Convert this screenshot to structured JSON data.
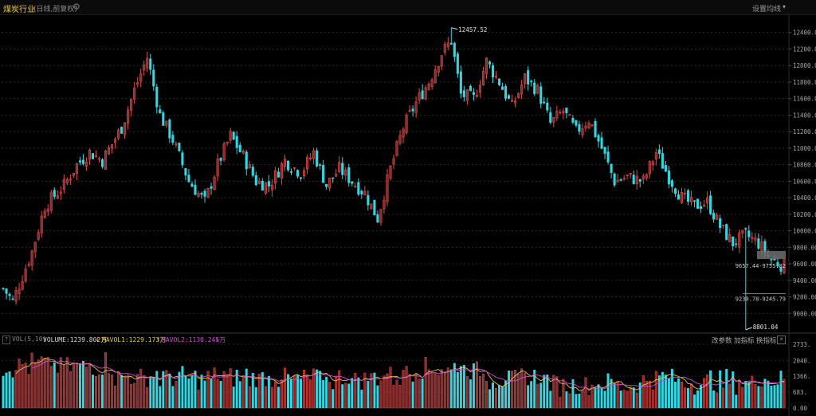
{
  "header": {
    "title": "煤炭行业",
    "subtitle": "(日线,前复权)",
    "ma_settings": "设置均线",
    "gear_icon": "gear-icon",
    "caret_icon": "caret-down-icon"
  },
  "colors": {
    "up": "#e34a4a",
    "down": "#36d6e1",
    "up_fill": "#8c2b2b",
    "ma1": "#e6c34a",
    "ma2": "#d34bd8",
    "grid": "#2a2a2a"
  },
  "volume_bar": {
    "help_label": "?",
    "name": "VOL(5,10)",
    "volume": "VOLUME:1239.802万",
    "volume_arrow": "↓",
    "ma1": "MAVOL1:1229.173万",
    "ma1_arrow": "↑",
    "ma2": "MAVOL2:1130.245万",
    "ma2_arrow": "↓",
    "param_button": "改参数",
    "add_button": "加指标",
    "switch_button": "换指标",
    "close_label": "✕"
  },
  "chart_data": [
    {
      "type": "candlestick",
      "title": "煤炭行业",
      "ylim": [
        8800,
        12600
      ],
      "y_ticks": [
        9000,
        9200,
        9400,
        9600,
        9800,
        10000,
        10200,
        10400,
        10600,
        10800,
        11000,
        11200,
        11400,
        11600,
        11800,
        12000,
        12200,
        12400
      ],
      "y_tick_labels": [
        "9000.00",
        "9200.00",
        "9400.00",
        "9600.00",
        "9800.00",
        "10000.00",
        "10200.00",
        "10400.00",
        "10600.00",
        "10800.00",
        "11000.00",
        "11200.00",
        "11400.00",
        "11600.00",
        "11800.00",
        "12000.00",
        "12200.00",
        "12400.00"
      ],
      "grid": true,
      "candle_count": 245,
      "close_anchors": [
        [
          0,
          9300
        ],
        [
          3,
          9150
        ],
        [
          9,
          9750
        ],
        [
          13,
          10300
        ],
        [
          19,
          10550
        ],
        [
          23,
          10800
        ],
        [
          27,
          10950
        ],
        [
          31,
          10850
        ],
        [
          37,
          11250
        ],
        [
          41,
          11700
        ],
        [
          45,
          12100
        ],
        [
          49,
          11400
        ],
        [
          53,
          11100
        ],
        [
          58,
          10600
        ],
        [
          63,
          10350
        ],
        [
          67,
          10800
        ],
        [
          71,
          11150
        ],
        [
          75,
          10900
        ],
        [
          79,
          10600
        ],
        [
          83,
          10550
        ],
        [
          88,
          10850
        ],
        [
          93,
          10700
        ],
        [
          97,
          10950
        ],
        [
          101,
          10550
        ],
        [
          105,
          10750
        ],
        [
          109,
          10600
        ],
        [
          113,
          10450
        ],
        [
          117,
          10150
        ],
        [
          121,
          10750
        ],
        [
          125,
          11250
        ],
        [
          129,
          11550
        ],
        [
          133,
          11800
        ],
        [
          137,
          12150
        ],
        [
          140,
          12300
        ],
        [
          143,
          11650
        ],
        [
          147,
          11600
        ],
        [
          151,
          12050
        ],
        [
          155,
          11800
        ],
        [
          159,
          11500
        ],
        [
          163,
          11850
        ],
        [
          167,
          11700
        ],
        [
          171,
          11300
        ],
        [
          175,
          11450
        ],
        [
          179,
          11200
        ],
        [
          183,
          11350
        ],
        [
          187,
          11000
        ],
        [
          191,
          10600
        ],
        [
          195,
          10650
        ],
        [
          200,
          10600
        ],
        [
          204,
          10950
        ],
        [
          208,
          10650
        ],
        [
          212,
          10400
        ],
        [
          216,
          10300
        ],
        [
          220,
          10350
        ],
        [
          224,
          10050
        ],
        [
          228,
          9850
        ],
        [
          232,
          9950
        ],
        [
          236,
          9850
        ],
        [
          240,
          9650
        ],
        [
          245,
          9550
        ]
      ],
      "peak_high": {
        "index": 140,
        "value": 12457.52,
        "label": "12457.52"
      },
      "trough_low": {
        "index": 232,
        "value": 8801.04,
        "label": "8801.04"
      },
      "range_labels": [
        {
          "text": "9657.44-9755.82",
          "from": 9657.44,
          "to": 9755.82
        },
        {
          "text": "9239.78-9245.79",
          "from": 9239.78,
          "to": 9245.79
        }
      ]
    },
    {
      "type": "bar",
      "title": "VOL(5,10)",
      "ylim": [
        0,
        2733
      ],
      "y_ticks": [
        0,
        683,
        1366,
        2040,
        2733
      ],
      "y_tick_labels": [
        "0.00",
        "683.",
        "1366.",
        "2040.",
        "2733."
      ],
      "series": [
        {
          "name": "MAVOL1",
          "window": 5
        },
        {
          "name": "MAVOL2",
          "window": 10
        }
      ],
      "last_volume": 1239.802,
      "last_mavol1": 1229.173,
      "last_mavol2": 1130.245
    }
  ]
}
